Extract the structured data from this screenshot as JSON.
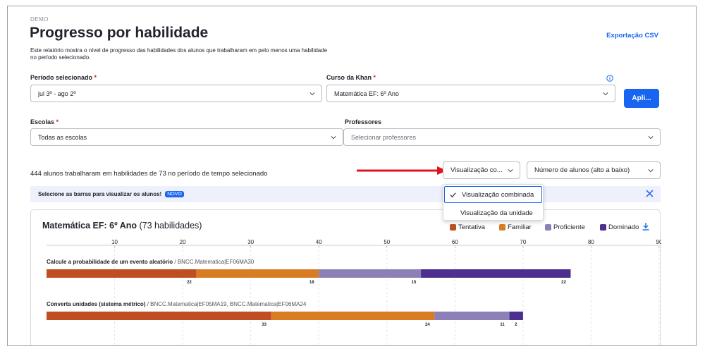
{
  "header": {
    "demo_label": "DEMO",
    "title": "Progresso por habilidade",
    "description": "Este relatório mostra o nível de progresso das habilidades dos alunos que trabalharam em pelo menos uma habilidade no período selecionado.",
    "export_label": "Exportação CSV"
  },
  "filters": {
    "period_label": "Período selecionado",
    "period_value": "jul 3º - ago 2º",
    "course_label": "Curso da Khan",
    "course_value": "Matemática EF: 6º Ano",
    "apply_label": "Apli...",
    "schools_label": "Escolas",
    "schools_value": "Todas as escolas",
    "teachers_label": "Professores",
    "teachers_placeholder": "Selecionar professores",
    "required_mark": "*"
  },
  "summary": {
    "text": "444 alunos trabalharam em habilidades de 73 no período de tempo selecionado",
    "view_select_value": "Visualização co...",
    "sort_select_value": "Número de alunos (alto a baixo)"
  },
  "banner": {
    "text": "Selecione as barras para visualizar os alunos!",
    "badge": "NOVO"
  },
  "view_dropdown": {
    "options": [
      "Visualização combinada",
      "Visualização da unidade"
    ],
    "selected_index": 0
  },
  "card": {
    "title_bold": "Matemática EF: 6º Ano",
    "title_rest": "(73 habilidades)",
    "legend": [
      {
        "label": "Tentativa",
        "color": "#bf4f23"
      },
      {
        "label": "Familiar",
        "color": "#d97d24"
      },
      {
        "label": "Proficiente",
        "color": "#8c80b6"
      },
      {
        "label": "Dominado",
        "color": "#4d2f8f"
      }
    ]
  },
  "chart_data": {
    "type": "bar",
    "orientation": "horizontal-stacked",
    "x_ticks": [
      10,
      20,
      30,
      40,
      50,
      60,
      70,
      80,
      90
    ],
    "xlim": [
      0,
      90
    ],
    "grid": true,
    "series_names": [
      "Tentativa",
      "Familiar",
      "Proficiente",
      "Dominado"
    ],
    "colors": [
      "#bf4f23",
      "#d97d24",
      "#8c80b6",
      "#4d2f8f"
    ],
    "rows": [
      {
        "label_bold": "Calcule a probabilidade de um evento aleatório",
        "label_rest": " / BNCC.Matematica|EF06MA30",
        "values": [
          22,
          18,
          15,
          22
        ],
        "value_labels": [
          "22",
          "18",
          "15",
          "22"
        ]
      },
      {
        "label_bold": "Converta unidades (sistema métrico)",
        "label_rest": " / BNCC.Matematica|EF05MA19, BNCC.Matematica|EF06MA24",
        "values": [
          33,
          24,
          11,
          2
        ],
        "value_labels": [
          "33",
          "24",
          "11",
          "2"
        ]
      }
    ]
  }
}
